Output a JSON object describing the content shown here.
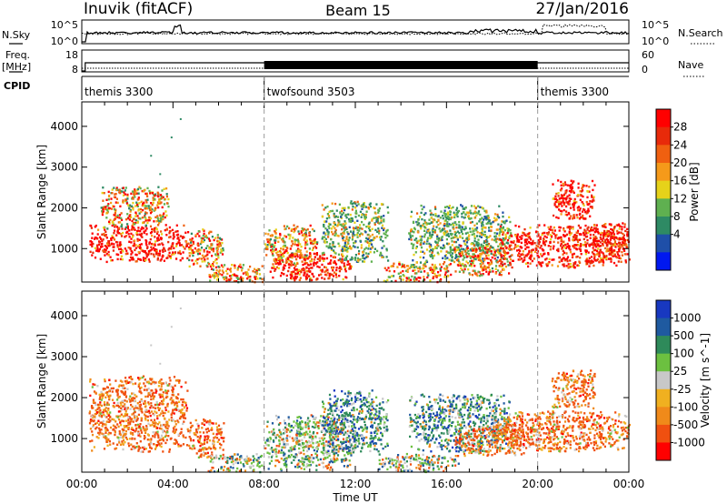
{
  "header": {
    "left_title": "Inuvik (fitACF)",
    "center_title": "Beam 15",
    "right_title": "27/Jan/2016"
  },
  "summary": {
    "nsky_label": "N.Sky",
    "nsearch_label": "N.Search",
    "freq_label": "Freq.",
    "freq_unit": "[MHz]",
    "nave_label": "Nave",
    "cpid_label": "CPID",
    "noise_left_ticks": [
      "10^5",
      "10^0"
    ],
    "noise_right_ticks": [
      "10^5",
      "10^0"
    ],
    "freq_ticks": [
      "18",
      "8"
    ],
    "nave_ticks": [
      "60",
      "0"
    ]
  },
  "cpid_segments": [
    {
      "label": "themis 3300",
      "start_hour": 0
    },
    {
      "label": "twofsound 3503",
      "start_hour": 8
    },
    {
      "label": "themis 3300",
      "start_hour": 20
    }
  ],
  "colors": {
    "power": [
      "#0018f0",
      "#1f4fa8",
      "#2e8a64",
      "#5fb050",
      "#e6d21a",
      "#f59a1a",
      "#f06010",
      "#e82a0a",
      "#ff0000"
    ],
    "velocity": [
      "#ff0000",
      "#f05010",
      "#f08a1a",
      "#f0b020",
      "#c8c8c8",
      "#6cc040",
      "#2e8a5a",
      "#1f5aa0",
      "#1838c0"
    ]
  },
  "chart_data": [
    {
      "type": "heatmap",
      "title": "Power",
      "xlabel": "Time UT",
      "ylabel": "Slant Range [km]",
      "x_ticks": [
        "00:00",
        "04:00",
        "08:00",
        "12:00",
        "16:00",
        "20:00",
        "00:00"
      ],
      "x_range_hours": [
        0,
        24
      ],
      "ylim": [
        180,
        4600
      ],
      "y_ticks": [
        1000,
        2000,
        3000,
        4000
      ],
      "colorbar": {
        "label": "Power [dB]",
        "ticks": [
          "28",
          "24",
          "20",
          "16",
          "12",
          "8",
          "4"
        ],
        "range": [
          0,
          32
        ]
      },
      "clusters": [
        {
          "t": [
            0.3,
            4.6
          ],
          "r": [
            700,
            1600
          ],
          "level": "high"
        },
        {
          "t": [
            0.8,
            3.8
          ],
          "r": [
            1500,
            2550
          ],
          "level": "mixed"
        },
        {
          "t": [
            4.6,
            6.2
          ],
          "r": [
            550,
            1500
          ],
          "level": "mixed"
        },
        {
          "t": [
            5.5,
            7.9
          ],
          "r": [
            200,
            650
          ],
          "level": "mixed"
        },
        {
          "t": [
            8.2,
            11.8
          ],
          "r": [
            250,
            900
          ],
          "level": "high"
        },
        {
          "t": [
            8.0,
            10.3
          ],
          "r": [
            600,
            1600
          ],
          "level": "mixed"
        },
        {
          "t": [
            10.5,
            13.4
          ],
          "r": [
            700,
            2200
          ],
          "level": "low"
        },
        {
          "t": [
            13.2,
            16.2
          ],
          "r": [
            200,
            700
          ],
          "level": "mixed"
        },
        {
          "t": [
            14.3,
            18.8
          ],
          "r": [
            700,
            2100
          ],
          "level": "low"
        },
        {
          "t": [
            16.3,
            18.8
          ],
          "r": [
            350,
            1150
          ],
          "level": "mixed"
        },
        {
          "t": [
            18.3,
            23.9
          ],
          "r": [
            550,
            1600
          ],
          "level": "high"
        },
        {
          "t": [
            20.6,
            22.5
          ],
          "r": [
            1750,
            2700
          ],
          "level": "high"
        },
        {
          "t": [
            22.4,
            24.0
          ],
          "r": [
            700,
            1650
          ],
          "level": "high"
        }
      ]
    },
    {
      "type": "heatmap",
      "title": "Velocity",
      "xlabel": "Time UT",
      "ylabel": "Slant Range [km]",
      "x_ticks": [
        "00:00",
        "04:00",
        "08:00",
        "12:00",
        "16:00",
        "20:00",
        "00:00"
      ],
      "x_range_hours": [
        0,
        24
      ],
      "ylim": [
        180,
        4600
      ],
      "y_ticks": [
        1000,
        2000,
        3000,
        4000
      ],
      "colorbar": {
        "label": "Velocity [m s^-1]",
        "ticks": [
          "1000",
          "500",
          "100",
          "25",
          "-25",
          "-100",
          "-500",
          "-1000"
        ]
      },
      "clusters": [
        {
          "t": [
            0.3,
            4.6
          ],
          "r": [
            700,
            2550
          ],
          "level": "negative"
        },
        {
          "t": [
            4.6,
            6.2
          ],
          "r": [
            550,
            1500
          ],
          "level": "negative"
        },
        {
          "t": [
            5.5,
            7.9
          ],
          "r": [
            200,
            650
          ],
          "level": "mixed"
        },
        {
          "t": [
            8.0,
            12.0
          ],
          "r": [
            250,
            1600
          ],
          "level": "mixed"
        },
        {
          "t": [
            10.5,
            13.4
          ],
          "r": [
            700,
            2200
          ],
          "level": "positive"
        },
        {
          "t": [
            13.0,
            16.5
          ],
          "r": [
            200,
            650
          ],
          "level": "mixed"
        },
        {
          "t": [
            14.3,
            18.8
          ],
          "r": [
            700,
            2100
          ],
          "level": "positive"
        },
        {
          "t": [
            16.3,
            19.5
          ],
          "r": [
            600,
            1300
          ],
          "level": "negative"
        },
        {
          "t": [
            18.0,
            24.0
          ],
          "r": [
            700,
            1700
          ],
          "level": "negative"
        },
        {
          "t": [
            20.6,
            22.5
          ],
          "r": [
            1750,
            2700
          ],
          "level": "negative"
        }
      ]
    }
  ]
}
